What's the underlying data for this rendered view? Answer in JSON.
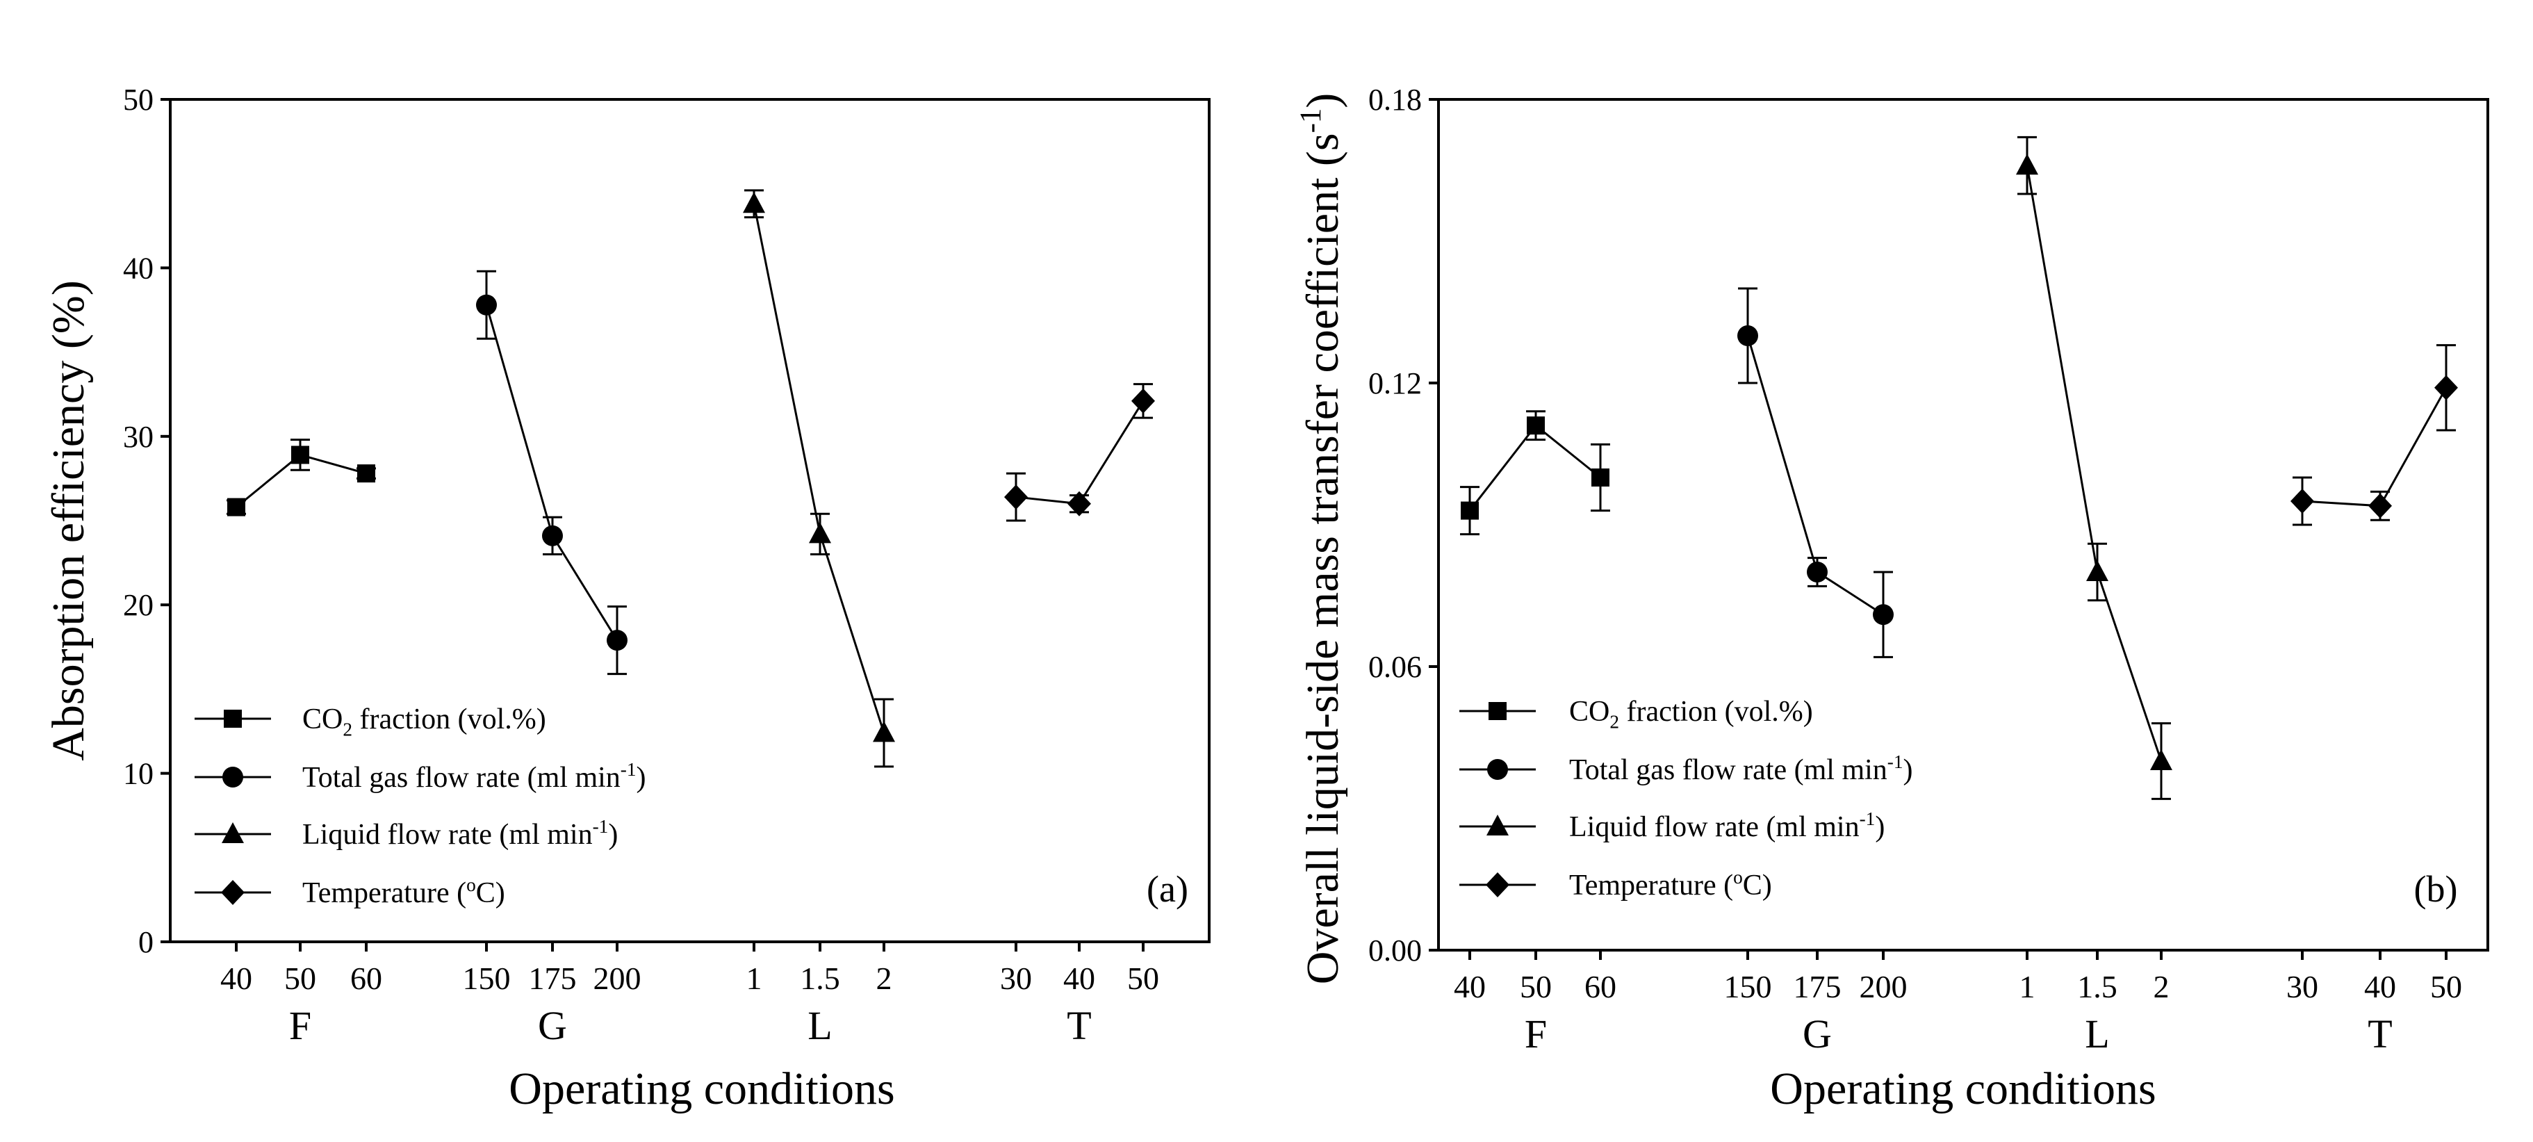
{
  "chart_data": [
    {
      "type": "line",
      "panel_label": "(a)",
      "ylabel": "Absorption efficiency (%)",
      "xlabel": "Operating conditions",
      "ylim": [
        0,
        50
      ],
      "yticks": [
        "0",
        "10",
        "20",
        "30",
        "40",
        "50"
      ],
      "ytick_values": [
        0,
        10,
        20,
        30,
        40,
        50
      ],
      "groups": [
        {
          "name": "F",
          "ticks": [
            "40",
            "50",
            "60"
          ]
        },
        {
          "name": "G",
          "ticks": [
            "150",
            "175",
            "200"
          ]
        },
        {
          "name": "L",
          "ticks": [
            "1",
            "1.5",
            "2"
          ]
        },
        {
          "name": "T",
          "ticks": [
            "30",
            "40",
            "50"
          ]
        }
      ],
      "series": [
        {
          "name": "CO2 fraction (vol.%)",
          "marker": "square",
          "values": [
            25.8,
            28.9,
            27.8
          ],
          "errors": [
            0.4,
            0.9,
            0.3
          ]
        },
        {
          "name": "Total gas flow rate (ml min-1)",
          "marker": "circle",
          "values": [
            37.8,
            24.1,
            17.9
          ],
          "errors": [
            2.0,
            1.1,
            2.0
          ]
        },
        {
          "name": "Liquid flow rate (ml min-1)",
          "marker": "triangle",
          "values": [
            43.8,
            24.2,
            12.4
          ],
          "errors": [
            0.8,
            1.2,
            2.0
          ]
        },
        {
          "name": "Temperature (oC)",
          "marker": "diamond",
          "values": [
            26.4,
            26.0,
            32.1
          ],
          "errors": [
            1.4,
            0.5,
            1.0
          ]
        }
      ]
    },
    {
      "type": "line",
      "panel_label": "(b)",
      "ylabel": "Overall liquid-side mass transfer coefficient (s-1)",
      "xlabel": "Operating conditions",
      "ylim": [
        0,
        0.18
      ],
      "yticks": [
        "0.00",
        "0.06",
        "0.12",
        "0.18"
      ],
      "ytick_values": [
        0,
        0.06,
        0.12,
        0.18
      ],
      "groups": [
        {
          "name": "F",
          "ticks": [
            "40",
            "50",
            "60"
          ]
        },
        {
          "name": "G",
          "ticks": [
            "150",
            "175",
            "200"
          ]
        },
        {
          "name": "L",
          "ticks": [
            "1",
            "1.5",
            "2"
          ]
        },
        {
          "name": "T",
          "ticks": [
            "30",
            "40",
            "50"
          ]
        }
      ],
      "series": [
        {
          "name": "CO2 fraction (vol.%)",
          "marker": "square",
          "values": [
            0.093,
            0.111,
            0.1
          ],
          "errors": [
            0.005,
            0.003,
            0.007
          ]
        },
        {
          "name": "Total gas flow rate (ml min-1)",
          "marker": "circle",
          "values": [
            0.13,
            0.08,
            0.071
          ],
          "errors": [
            0.01,
            0.003,
            0.009
          ]
        },
        {
          "name": "Liquid flow rate (ml min-1)",
          "marker": "triangle",
          "values": [
            0.166,
            0.08,
            0.04
          ],
          "errors": [
            0.006,
            0.006,
            0.008
          ]
        },
        {
          "name": "Temperature (oC)",
          "marker": "diamond",
          "values": [
            0.095,
            0.094,
            0.119
          ],
          "errors": [
            0.005,
            0.003,
            0.009
          ]
        }
      ]
    }
  ],
  "legend": {
    "items": [
      {
        "main": "CO",
        "sub": "2",
        "rest": " fraction (vol.%)"
      },
      {
        "main": "Total gas flow rate (ml min",
        "sup": "-1",
        "rest": ")"
      },
      {
        "main": "Liquid flow rate (ml min",
        "sup": "-1",
        "rest": ")"
      },
      {
        "main": "Temperature (",
        "sup": "o",
        "rest": "C)"
      }
    ],
    "ylabel_b_main": "Overall liquid-side mass transfer coefficient (s",
    "ylabel_b_sup": "-1",
    "ylabel_b_rest": ")"
  }
}
